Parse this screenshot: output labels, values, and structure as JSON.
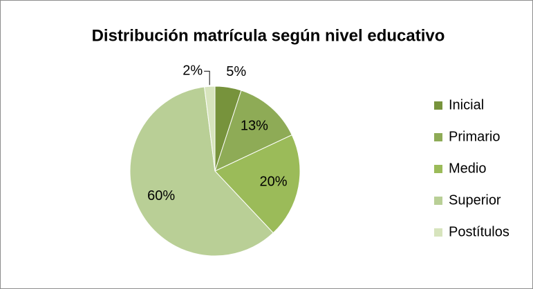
{
  "chart_data": {
    "type": "pie",
    "title": "Distribución matrícula según nivel educativo",
    "categories": [
      "Inicial",
      "Primario",
      "Medio",
      "Superior",
      "Postítulos"
    ],
    "values": [
      5,
      13,
      20,
      60,
      2
    ],
    "value_labels": [
      "5%",
      "13%",
      "20%",
      "60%",
      "2%"
    ],
    "colors": [
      "#77933c",
      "#8eab56",
      "#9bbb59",
      "#b9cf96",
      "#d7e4bd"
    ],
    "legend": "right"
  }
}
